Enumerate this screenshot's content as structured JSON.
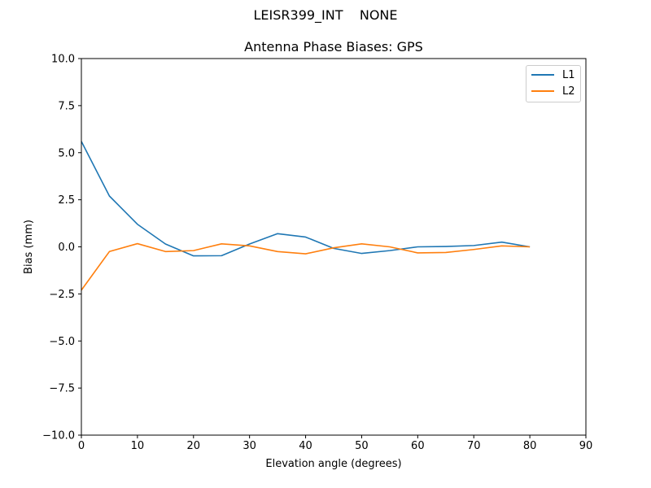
{
  "suptitle": "LEISR399_INT    NONE",
  "chart_data": {
    "type": "line",
    "title": "Antenna Phase Biases: GPS",
    "xlabel": "Elevation angle (degrees)",
    "ylabel": "Bias (mm)",
    "xlim": [
      0,
      90
    ],
    "ylim": [
      -10,
      10
    ],
    "xticks": [
      0,
      10,
      20,
      30,
      40,
      50,
      60,
      70,
      80,
      90
    ],
    "yticks": [
      -10.0,
      -7.5,
      -5.0,
      -2.5,
      0.0,
      2.5,
      5.0,
      7.5,
      10.0
    ],
    "xtick_labels": [
      "0",
      "10",
      "20",
      "30",
      "40",
      "50",
      "60",
      "70",
      "80",
      "90"
    ],
    "ytick_labels": [
      "−10.0",
      "−7.5",
      "−5.0",
      "−2.5",
      "0.0",
      "2.5",
      "5.0",
      "7.5",
      "10.0"
    ],
    "grid": false,
    "legend_position": "top-right",
    "x": [
      0,
      5,
      10,
      15,
      20,
      25,
      30,
      35,
      40,
      45,
      50,
      55,
      60,
      65,
      70,
      75,
      80
    ],
    "series": [
      {
        "name": "L1",
        "color": "#1f77b4",
        "values": [
          5.6,
          2.7,
          1.2,
          0.15,
          -0.48,
          -0.47,
          0.15,
          0.7,
          0.52,
          -0.08,
          -0.35,
          -0.2,
          0.0,
          0.02,
          0.07,
          0.25,
          0.0
        ]
      },
      {
        "name": "L2",
        "color": "#ff7f0e",
        "values": [
          -2.3,
          -0.25,
          0.17,
          -0.25,
          -0.2,
          0.16,
          0.05,
          -0.25,
          -0.37,
          -0.05,
          0.16,
          0.0,
          -0.32,
          -0.3,
          -0.14,
          0.05,
          0.0
        ]
      }
    ]
  }
}
